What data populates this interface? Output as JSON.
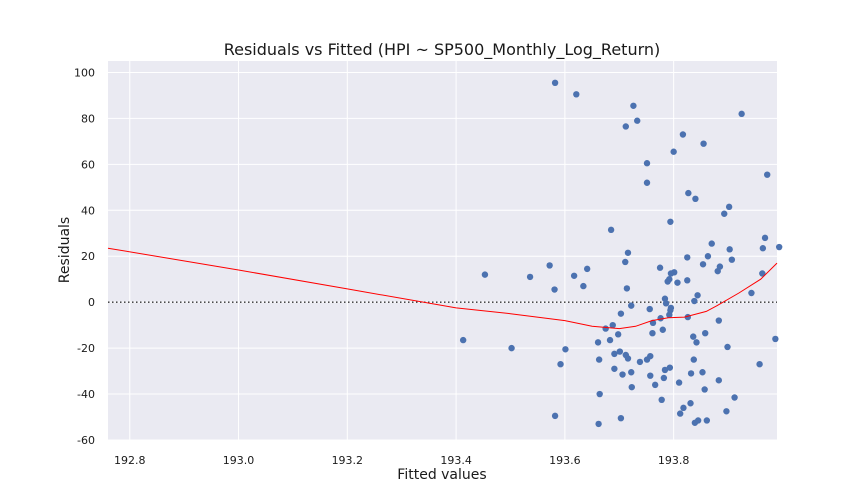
{
  "chart_data": {
    "type": "scatter",
    "title": "Residuals vs Fitted (HPI ~ SP500_Monthly_Log_Return)",
    "xlabel": "Fitted values",
    "ylabel": "Residuals",
    "xlim": [
      192.76,
      193.99
    ],
    "ylim": [
      -60,
      105
    ],
    "xticks": [
      192.8,
      193.0,
      193.2,
      193.4,
      193.6,
      193.8
    ],
    "yticks": [
      -60,
      -40,
      -20,
      0,
      20,
      40,
      60,
      80,
      100
    ],
    "grid": true,
    "reference_line": {
      "y": 0,
      "style": "dotted"
    },
    "colors": {
      "points": "#4c72b0",
      "smooth": "#ff0000",
      "background": "#eaeaf2",
      "grid": "#ffffff"
    },
    "points": [
      {
        "x": 193.582,
        "y": 95.5
      },
      {
        "x": 193.621,
        "y": 90.5
      },
      {
        "x": 193.726,
        "y": 85.5
      },
      {
        "x": 193.733,
        "y": 79
      },
      {
        "x": 193.712,
        "y": 76.5
      },
      {
        "x": 193.925,
        "y": 82
      },
      {
        "x": 193.817,
        "y": 73
      },
      {
        "x": 193.855,
        "y": 69
      },
      {
        "x": 193.8,
        "y": 65.5
      },
      {
        "x": 193.751,
        "y": 60.5
      },
      {
        "x": 193.751,
        "y": 52
      },
      {
        "x": 193.827,
        "y": 47.5
      },
      {
        "x": 193.84,
        "y": 45
      },
      {
        "x": 193.972,
        "y": 55.5
      },
      {
        "x": 193.902,
        "y": 41.5
      },
      {
        "x": 193.893,
        "y": 38.5
      },
      {
        "x": 193.794,
        "y": 35
      },
      {
        "x": 193.685,
        "y": 31.5
      },
      {
        "x": 193.968,
        "y": 28
      },
      {
        "x": 193.87,
        "y": 25.5
      },
      {
        "x": 193.903,
        "y": 23
      },
      {
        "x": 193.964,
        "y": 23.5
      },
      {
        "x": 193.994,
        "y": 24
      },
      {
        "x": 193.716,
        "y": 21.5
      },
      {
        "x": 193.825,
        "y": 19.5
      },
      {
        "x": 193.863,
        "y": 20
      },
      {
        "x": 193.907,
        "y": 18.5
      },
      {
        "x": 193.711,
        "y": 17.5
      },
      {
        "x": 193.572,
        "y": 16
      },
      {
        "x": 193.854,
        "y": 16.5
      },
      {
        "x": 193.775,
        "y": 15
      },
      {
        "x": 193.885,
        "y": 15.5
      },
      {
        "x": 193.641,
        "y": 14.5
      },
      {
        "x": 193.881,
        "y": 13.5
      },
      {
        "x": 193.795,
        "y": 12.5
      },
      {
        "x": 193.801,
        "y": 13
      },
      {
        "x": 193.963,
        "y": 12.5
      },
      {
        "x": 193.453,
        "y": 12
      },
      {
        "x": 193.536,
        "y": 11
      },
      {
        "x": 193.617,
        "y": 11.5
      },
      {
        "x": 193.792,
        "y": 10
      },
      {
        "x": 193.789,
        "y": 9
      },
      {
        "x": 193.807,
        "y": 8.5
      },
      {
        "x": 193.634,
        "y": 7
      },
      {
        "x": 193.714,
        "y": 6
      },
      {
        "x": 193.825,
        "y": 9.5
      },
      {
        "x": 193.581,
        "y": 5.5
      },
      {
        "x": 193.943,
        "y": 4
      },
      {
        "x": 193.844,
        "y": 3
      },
      {
        "x": 193.784,
        "y": 1.5
      },
      {
        "x": 193.838,
        "y": 0.5
      },
      {
        "x": 193.786,
        "y": -0.5
      },
      {
        "x": 193.722,
        "y": -1.5
      },
      {
        "x": 193.795,
        "y": -2.5
      },
      {
        "x": 193.794,
        "y": -3.5
      },
      {
        "x": 193.756,
        "y": -3
      },
      {
        "x": 193.703,
        "y": -5
      },
      {
        "x": 193.792,
        "y": -5.5
      },
      {
        "x": 193.826,
        "y": -6.5
      },
      {
        "x": 193.776,
        "y": -7
      },
      {
        "x": 193.883,
        "y": -8
      },
      {
        "x": 193.762,
        "y": -9
      },
      {
        "x": 193.688,
        "y": -10
      },
      {
        "x": 193.675,
        "y": -11.5
      },
      {
        "x": 193.78,
        "y": -12
      },
      {
        "x": 193.698,
        "y": -14
      },
      {
        "x": 193.858,
        "y": -13.5
      },
      {
        "x": 193.761,
        "y": -13.5
      },
      {
        "x": 193.836,
        "y": -15
      },
      {
        "x": 193.413,
        "y": -16.5
      },
      {
        "x": 193.683,
        "y": -16.5
      },
      {
        "x": 193.661,
        "y": -17.5
      },
      {
        "x": 193.842,
        "y": -17.5
      },
      {
        "x": 193.987,
        "y": -16
      },
      {
        "x": 193.502,
        "y": -20
      },
      {
        "x": 193.601,
        "y": -20.5
      },
      {
        "x": 193.899,
        "y": -19.5
      },
      {
        "x": 193.701,
        "y": -21.5
      },
      {
        "x": 193.691,
        "y": -22.5
      },
      {
        "x": 193.712,
        "y": -23
      },
      {
        "x": 193.757,
        "y": -23.5
      },
      {
        "x": 193.716,
        "y": -24.5
      },
      {
        "x": 193.751,
        "y": -25
      },
      {
        "x": 193.663,
        "y": -25
      },
      {
        "x": 193.837,
        "y": -25
      },
      {
        "x": 193.738,
        "y": -26
      },
      {
        "x": 193.592,
        "y": -27
      },
      {
        "x": 193.958,
        "y": -27
      },
      {
        "x": 193.793,
        "y": -28.5
      },
      {
        "x": 193.691,
        "y": -29
      },
      {
        "x": 193.784,
        "y": -29.5
      },
      {
        "x": 193.853,
        "y": -30.5
      },
      {
        "x": 193.722,
        "y": -30.5
      },
      {
        "x": 193.832,
        "y": -31
      },
      {
        "x": 193.706,
        "y": -31.5
      },
      {
        "x": 193.757,
        "y": -32
      },
      {
        "x": 193.782,
        "y": -33
      },
      {
        "x": 193.883,
        "y": -34
      },
      {
        "x": 193.81,
        "y": -35
      },
      {
        "x": 193.766,
        "y": -36
      },
      {
        "x": 193.723,
        "y": -37
      },
      {
        "x": 193.857,
        "y": -38
      },
      {
        "x": 193.664,
        "y": -40
      },
      {
        "x": 193.912,
        "y": -41.5
      },
      {
        "x": 193.778,
        "y": -42.5
      },
      {
        "x": 193.831,
        "y": -44
      },
      {
        "x": 193.818,
        "y": -46
      },
      {
        "x": 193.812,
        "y": -48.5
      },
      {
        "x": 193.897,
        "y": -47.5
      },
      {
        "x": 193.582,
        "y": -49.5
      },
      {
        "x": 193.703,
        "y": -50.5
      },
      {
        "x": 193.845,
        "y": -51.5
      },
      {
        "x": 193.861,
        "y": -51.5
      },
      {
        "x": 193.839,
        "y": -52.5
      },
      {
        "x": 193.662,
        "y": -53
      }
    ],
    "smooth_line": [
      {
        "x": 192.76,
        "y": 23.5
      },
      {
        "x": 193.0,
        "y": 14
      },
      {
        "x": 193.2,
        "y": 5.8
      },
      {
        "x": 193.4,
        "y": -2.5
      },
      {
        "x": 193.5,
        "y": -5
      },
      {
        "x": 193.6,
        "y": -8
      },
      {
        "x": 193.65,
        "y": -10.5
      },
      {
        "x": 193.7,
        "y": -11.5
      },
      {
        "x": 193.73,
        "y": -10.5
      },
      {
        "x": 193.76,
        "y": -8
      },
      {
        "x": 193.79,
        "y": -6.8
      },
      {
        "x": 193.82,
        "y": -6.5
      },
      {
        "x": 193.86,
        "y": -4
      },
      {
        "x": 193.88,
        "y": -1.5
      },
      {
        "x": 193.92,
        "y": 4
      },
      {
        "x": 193.96,
        "y": 10
      },
      {
        "x": 193.99,
        "y": 17
      }
    ]
  }
}
